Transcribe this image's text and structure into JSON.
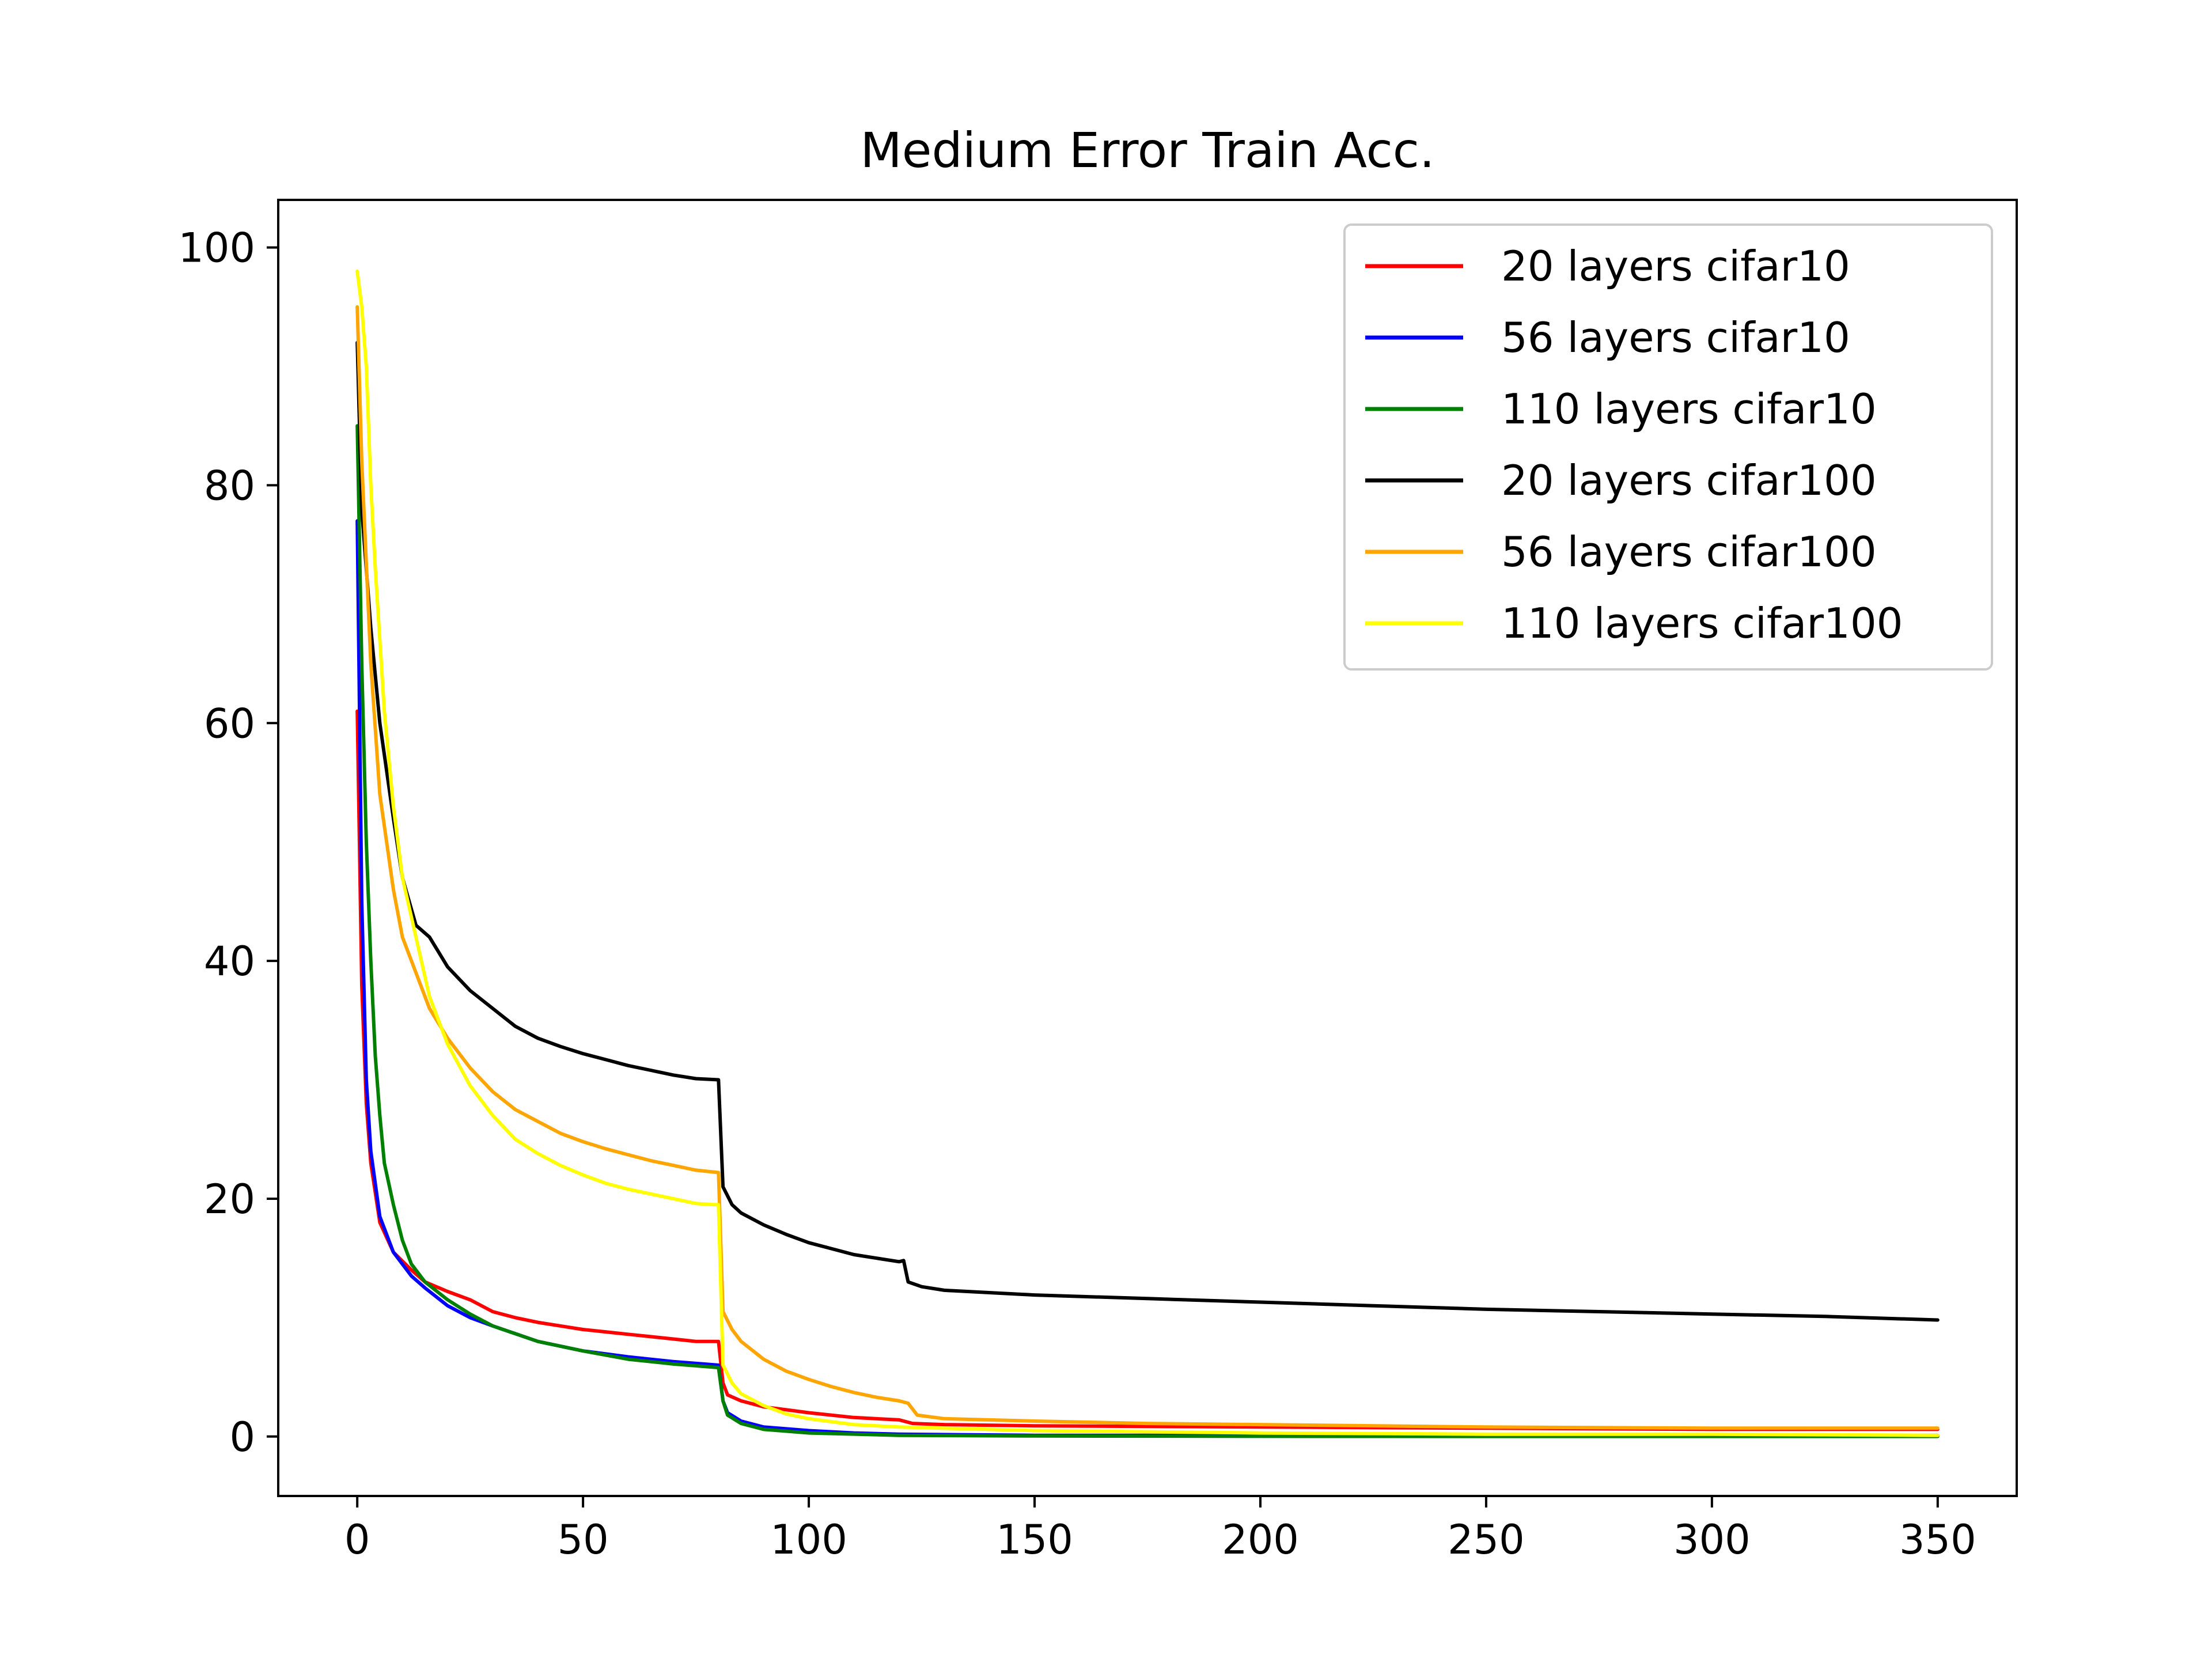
{
  "chart_data": {
    "type": "line",
    "title": "Medium Error Train Acc.",
    "xlabel": "",
    "ylabel": "",
    "xlim": [
      -17.5,
      367.5
    ],
    "ylim": [
      -5,
      104
    ],
    "xticks": [
      0,
      50,
      100,
      150,
      200,
      250,
      300,
      350
    ],
    "yticks": [
      0,
      20,
      40,
      60,
      80,
      100
    ],
    "grid": false,
    "legend_position": "top-right",
    "series": [
      {
        "name": "20 layers cifar10",
        "color": "#ff0000",
        "points": [
          [
            0,
            61
          ],
          [
            1,
            38
          ],
          [
            2,
            28
          ],
          [
            3,
            23
          ],
          [
            5,
            18
          ],
          [
            8,
            15.5
          ],
          [
            12,
            14
          ],
          [
            15,
            13
          ],
          [
            20,
            12.2
          ],
          [
            25,
            11.5
          ],
          [
            30,
            10.5
          ],
          [
            35,
            10
          ],
          [
            40,
            9.6
          ],
          [
            45,
            9.3
          ],
          [
            50,
            9
          ],
          [
            55,
            8.8
          ],
          [
            60,
            8.6
          ],
          [
            65,
            8.4
          ],
          [
            70,
            8.2
          ],
          [
            75,
            8
          ],
          [
            80,
            8
          ],
          [
            81,
            4.5
          ],
          [
            82,
            3.5
          ],
          [
            85,
            3
          ],
          [
            90,
            2.5
          ],
          [
            100,
            2
          ],
          [
            110,
            1.6
          ],
          [
            120,
            1.4
          ],
          [
            123,
            1.1
          ],
          [
            130,
            1
          ],
          [
            150,
            0.9
          ],
          [
            200,
            0.8
          ],
          [
            250,
            0.7
          ],
          [
            300,
            0.6
          ],
          [
            350,
            0.6
          ]
        ]
      },
      {
        "name": "56 layers cifar10",
        "color": "#0000ff",
        "points": [
          [
            0,
            77
          ],
          [
            1,
            45
          ],
          [
            2,
            30
          ],
          [
            3,
            24
          ],
          [
            5,
            18.5
          ],
          [
            8,
            15.5
          ],
          [
            12,
            13.5
          ],
          [
            15,
            12.5
          ],
          [
            20,
            11
          ],
          [
            25,
            10
          ],
          [
            30,
            9.3
          ],
          [
            40,
            8
          ],
          [
            50,
            7.2
          ],
          [
            60,
            6.7
          ],
          [
            70,
            6.3
          ],
          [
            80,
            6
          ],
          [
            81,
            3
          ],
          [
            82,
            2
          ],
          [
            85,
            1.3
          ],
          [
            90,
            0.8
          ],
          [
            100,
            0.5
          ],
          [
            110,
            0.3
          ],
          [
            120,
            0.2
          ],
          [
            150,
            0.1
          ],
          [
            200,
            0.1
          ],
          [
            250,
            0.1
          ],
          [
            300,
            0.1
          ],
          [
            350,
            0.1
          ]
        ]
      },
      {
        "name": "110 layers cifar10",
        "color": "#008000",
        "points": [
          [
            0,
            85
          ],
          [
            1,
            65
          ],
          [
            2,
            50
          ],
          [
            3,
            40
          ],
          [
            4,
            32
          ],
          [
            5,
            27
          ],
          [
            6,
            23
          ],
          [
            8,
            19.5
          ],
          [
            10,
            16.5
          ],
          [
            12,
            14.5
          ],
          [
            15,
            13
          ],
          [
            20,
            11.5
          ],
          [
            25,
            10.3
          ],
          [
            30,
            9.3
          ],
          [
            40,
            8
          ],
          [
            50,
            7.2
          ],
          [
            60,
            6.5
          ],
          [
            70,
            6.1
          ],
          [
            80,
            5.8
          ],
          [
            81,
            3
          ],
          [
            82,
            1.8
          ],
          [
            85,
            1.1
          ],
          [
            90,
            0.6
          ],
          [
            100,
            0.3
          ],
          [
            120,
            0.1
          ],
          [
            150,
            0.05
          ],
          [
            200,
            0.02
          ],
          [
            250,
            0.01
          ],
          [
            300,
            0.01
          ],
          [
            350,
            0.01
          ]
        ]
      },
      {
        "name": "20 layers cifar100",
        "color": "#000000",
        "points": [
          [
            0,
            92
          ],
          [
            1,
            78
          ],
          [
            3,
            68
          ],
          [
            5,
            60
          ],
          [
            8,
            52
          ],
          [
            10,
            47
          ],
          [
            13,
            43
          ],
          [
            16,
            42
          ],
          [
            20,
            39.5
          ],
          [
            25,
            37.5
          ],
          [
            30,
            36
          ],
          [
            35,
            34.5
          ],
          [
            40,
            33.5
          ],
          [
            45,
            32.8
          ],
          [
            50,
            32.2
          ],
          [
            55,
            31.7
          ],
          [
            60,
            31.2
          ],
          [
            65,
            30.8
          ],
          [
            70,
            30.4
          ],
          [
            75,
            30.1
          ],
          [
            80,
            30
          ],
          [
            81,
            21
          ],
          [
            83,
            19.5
          ],
          [
            85,
            18.8
          ],
          [
            90,
            17.8
          ],
          [
            95,
            17
          ],
          [
            100,
            16.3
          ],
          [
            105,
            15.8
          ],
          [
            110,
            15.3
          ],
          [
            115,
            15
          ],
          [
            120,
            14.7
          ],
          [
            121,
            14.8
          ],
          [
            122,
            13
          ],
          [
            125,
            12.6
          ],
          [
            130,
            12.3
          ],
          [
            150,
            11.9
          ],
          [
            175,
            11.6
          ],
          [
            200,
            11.3
          ],
          [
            225,
            11
          ],
          [
            250,
            10.7
          ],
          [
            275,
            10.5
          ],
          [
            300,
            10.3
          ],
          [
            325,
            10.1
          ],
          [
            350,
            9.8
          ]
        ]
      },
      {
        "name": "56 layers cifar100",
        "color": "#ffa500",
        "points": [
          [
            0,
            95
          ],
          [
            1,
            82
          ],
          [
            3,
            65
          ],
          [
            5,
            54
          ],
          [
            8,
            46
          ],
          [
            10,
            42
          ],
          [
            13,
            39
          ],
          [
            16,
            36
          ],
          [
            20,
            33.5
          ],
          [
            25,
            31
          ],
          [
            30,
            29
          ],
          [
            35,
            27.5
          ],
          [
            40,
            26.5
          ],
          [
            45,
            25.5
          ],
          [
            50,
            24.8
          ],
          [
            55,
            24.2
          ],
          [
            60,
            23.7
          ],
          [
            65,
            23.2
          ],
          [
            70,
            22.8
          ],
          [
            75,
            22.4
          ],
          [
            80,
            22.2
          ],
          [
            81,
            10.5
          ],
          [
            83,
            9
          ],
          [
            85,
            8
          ],
          [
            90,
            6.5
          ],
          [
            95,
            5.5
          ],
          [
            100,
            4.8
          ],
          [
            105,
            4.2
          ],
          [
            110,
            3.7
          ],
          [
            115,
            3.3
          ],
          [
            120,
            3
          ],
          [
            122,
            2.8
          ],
          [
            124,
            1.8
          ],
          [
            130,
            1.5
          ],
          [
            150,
            1.3
          ],
          [
            175,
            1.1
          ],
          [
            200,
            1
          ],
          [
            250,
            0.8
          ],
          [
            300,
            0.7
          ],
          [
            350,
            0.7
          ]
        ]
      },
      {
        "name": "110 layers cifar100",
        "color": "#ffff00",
        "points": [
          [
            0,
            98
          ],
          [
            1,
            95
          ],
          [
            2,
            90
          ],
          [
            3,
            80
          ],
          [
            4,
            73
          ],
          [
            5,
            67
          ],
          [
            6,
            61
          ],
          [
            8,
            53
          ],
          [
            10,
            47
          ],
          [
            13,
            42
          ],
          [
            16,
            37
          ],
          [
            20,
            33
          ],
          [
            25,
            29.5
          ],
          [
            30,
            27
          ],
          [
            35,
            25
          ],
          [
            40,
            23.8
          ],
          [
            45,
            22.8
          ],
          [
            50,
            22
          ],
          [
            55,
            21.3
          ],
          [
            60,
            20.8
          ],
          [
            65,
            20.4
          ],
          [
            70,
            20
          ],
          [
            75,
            19.6
          ],
          [
            79,
            19.5
          ],
          [
            80,
            19.5
          ],
          [
            81,
            6
          ],
          [
            83,
            4.5
          ],
          [
            85,
            3.6
          ],
          [
            90,
            2.6
          ],
          [
            95,
            1.9
          ],
          [
            100,
            1.5
          ],
          [
            110,
            1
          ],
          [
            120,
            0.8
          ],
          [
            150,
            0.5
          ],
          [
            200,
            0.3
          ],
          [
            250,
            0.2
          ],
          [
            300,
            0.2
          ],
          [
            350,
            0.1
          ]
        ]
      }
    ]
  }
}
